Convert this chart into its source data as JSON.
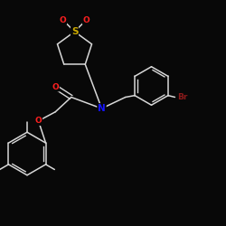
{
  "bg_color": "#080808",
  "atom_colors": {
    "C": "#e8e8e8",
    "N": "#1515ff",
    "O": "#ff2020",
    "S": "#ccaa00",
    "Br": "#8b1a1a"
  },
  "bond_color": "#d8d8d8",
  "figsize": [
    2.5,
    2.5
  ],
  "dpi": 100,
  "xlim": [
    0,
    10
  ],
  "ylim": [
    0,
    10
  ]
}
